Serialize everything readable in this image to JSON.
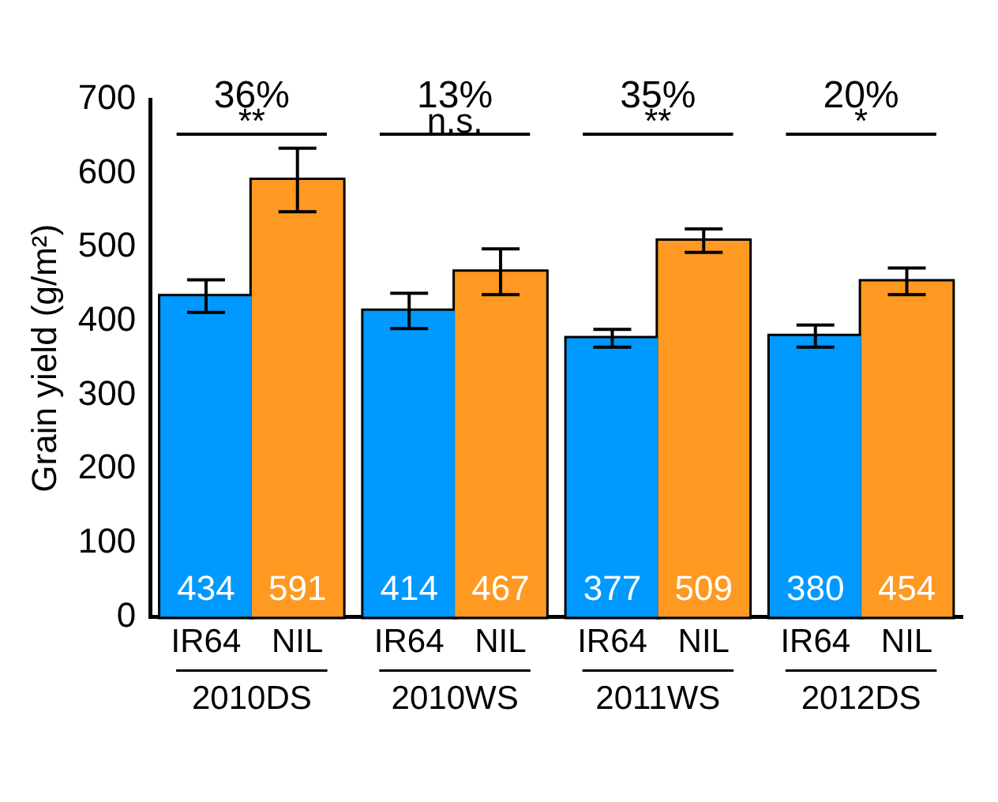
{
  "chart_data": {
    "type": "bar",
    "ylabel": "Grain yield (g/m²)",
    "categories": [
      "2010DS",
      "2010WS",
      "2011WS",
      "2012DS"
    ],
    "series": [
      {
        "name": "IR64",
        "color": "#0099ff",
        "values": [
          434,
          414,
          377,
          380
        ],
        "errors": [
          22,
          24,
          12,
          15
        ]
      },
      {
        "name": "NIL",
        "color": "#ff9922",
        "values": [
          591,
          467,
          509,
          454
        ],
        "errors": [
          43,
          31,
          16,
          18
        ]
      }
    ],
    "ylim": [
      0,
      700
    ],
    "yticks": [
      0,
      100,
      200,
      300,
      400,
      500,
      600,
      700
    ],
    "grid": false,
    "data_labels": true,
    "annotations": [
      "36%",
      "**",
      "13%",
      "n.s.",
      "35%",
      "**",
      "20%",
      "*"
    ]
  }
}
